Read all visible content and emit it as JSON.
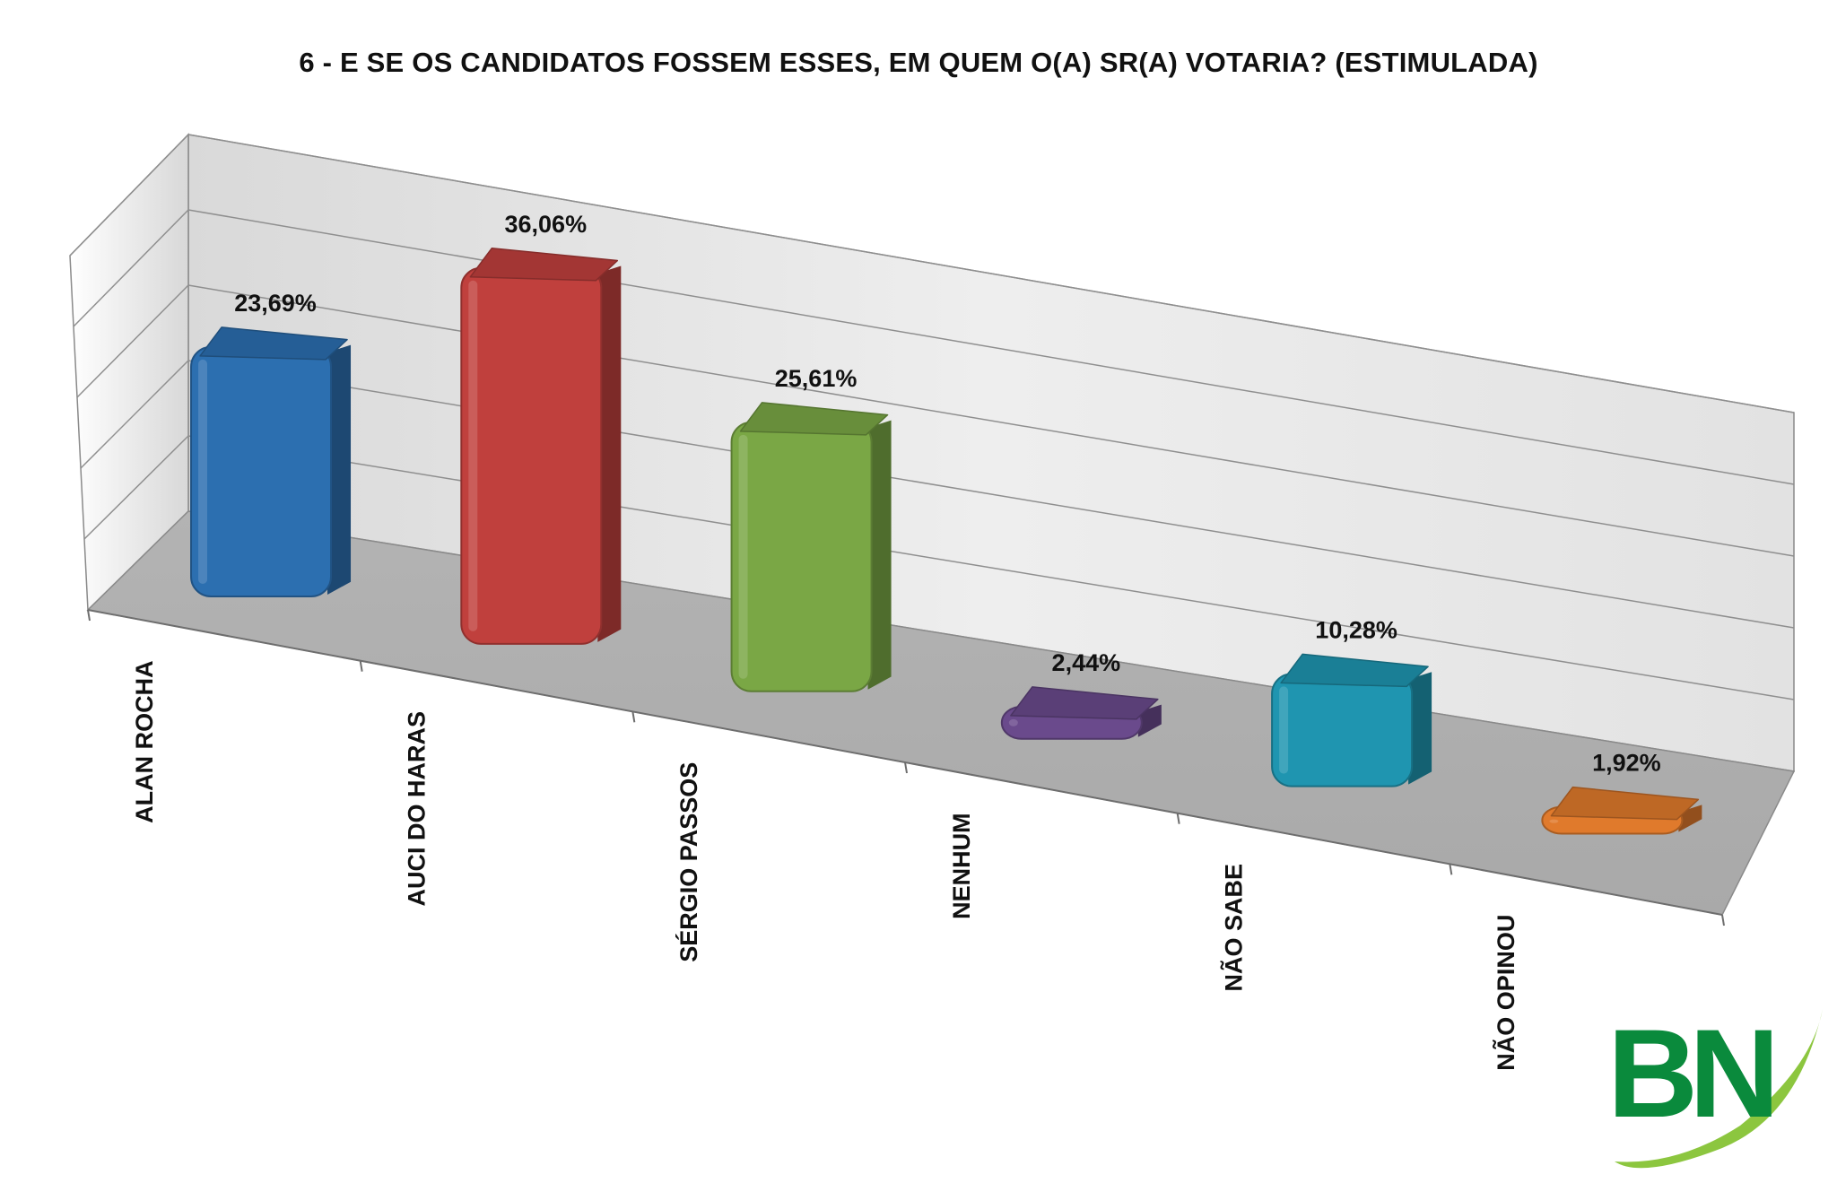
{
  "chart_data": {
    "type": "bar",
    "title": "6 - E SE OS CANDIDATOS FOSSEM ESSES, EM QUEM O(A) SR(A) VOTARIA? (ESTIMULADA)",
    "categories": [
      "ALAN ROCHA",
      "AUCI DO HARAS",
      "SÉRGIO PASSOS",
      "NENHUM",
      "NÃO SABE",
      "NÃO OPINOU"
    ],
    "values": [
      23.69,
      36.06,
      25.61,
      2.44,
      10.28,
      1.92
    ],
    "value_labels": [
      "23,69%",
      "36,06%",
      "25,61%",
      "2,44%",
      "10,28%",
      "1,92%"
    ],
    "colors": [
      "#2c6fb0",
      "#c0403d",
      "#7aa745",
      "#6a4a8c",
      "#1f95b0",
      "#e07a2c"
    ],
    "ylim": [
      0,
      40
    ],
    "grid": true,
    "three_d": true
  },
  "logo": {
    "text": "BN",
    "color": "#0a8a3c",
    "swoosh_color": "#8cc63f"
  }
}
